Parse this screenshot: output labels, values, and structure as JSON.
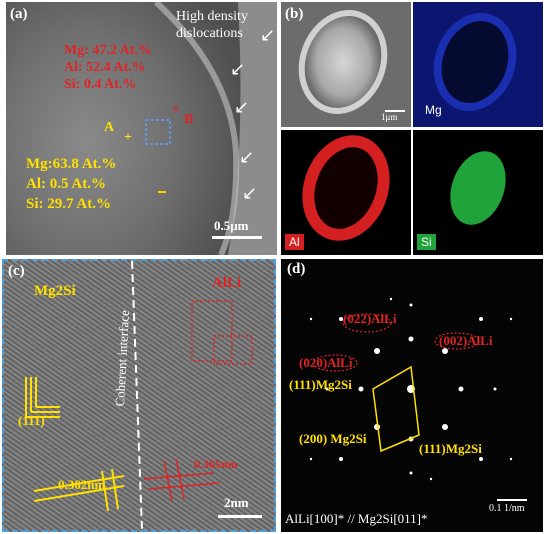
{
  "panel_a": {
    "label": "(a)",
    "title": "High density\ndislocations",
    "compB": {
      "mg": "Mg: 47.2 At.%",
      "al": "Al:  52.4 At.%",
      "si": "Si:   0.4  At.%"
    },
    "compA": {
      "mg": "Mg:63.8 At.%",
      "al": "Al:  0.5  At.%",
      "si": "Si:  29.7 At.%"
    },
    "pointA": "A",
    "pointB": "B",
    "scale": "0.5μm"
  },
  "panel_b": {
    "label": "(b)",
    "scale": "1μm",
    "maps": {
      "mg": "Mg",
      "al": "Al",
      "si": "Si"
    },
    "colors": {
      "mg": "#1a2fb0",
      "al": "#d42020",
      "si": "#1fa33a"
    }
  },
  "panel_c": {
    "label": "(c)",
    "phase_left": "Mg2Si",
    "phase_right": "AlLi",
    "interface": "Coherent interface",
    "plane": "(111)",
    "d1": "0.362nm",
    "d2": "0.365nm",
    "scale": "2nm"
  },
  "panel_d": {
    "label": "(d)",
    "spots": [
      "(022)AlLi",
      "(002)AlLi",
      "(020)AlLi",
      "(111)Mg2Si",
      "(200) Mg2Si",
      "(111)Mg2Si"
    ],
    "scale": "0.1 1/nm",
    "zone_axis": "AlLi[100]* // Mg2Si[011]*"
  }
}
